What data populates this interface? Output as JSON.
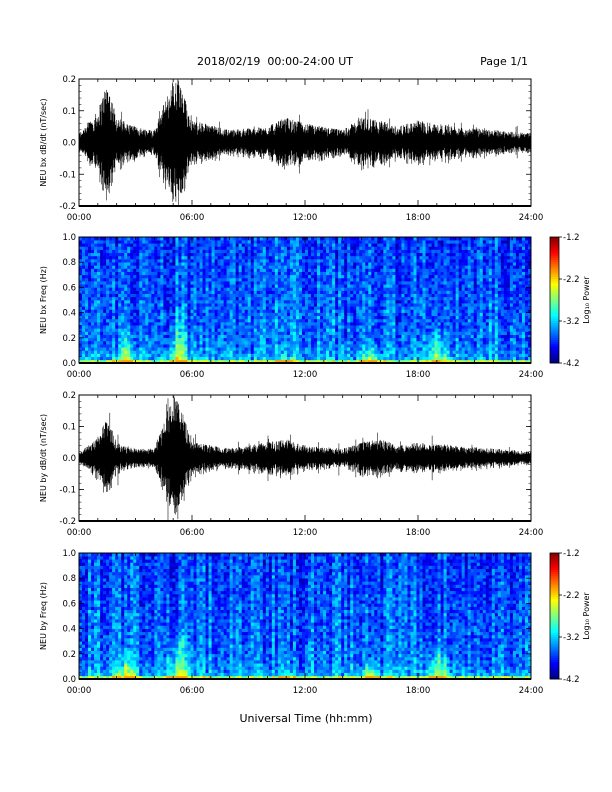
{
  "header": {
    "title": "2018/02/19  00:00-24:00 UT",
    "page": "Page 1/1"
  },
  "xaxis": {
    "label": "Universal Time (hh:mm)",
    "ticks": [
      "00:00",
      "06:00",
      "12:00",
      "18:00",
      "24:00"
    ],
    "range_hours": [
      0,
      24
    ]
  },
  "colorbar": {
    "label": "Log₁₀ Power",
    "ticks": [
      "-1.2",
      "-2.2",
      "-3.2",
      "-4.2"
    ],
    "range": [
      -4.2,
      -1.2
    ]
  },
  "chart_data": [
    {
      "type": "line",
      "ylabel": "NEU bx dB/dt (nT/sec)",
      "ylim": [
        -0.2,
        0.2
      ],
      "yticks": [
        "0.2",
        "0.1",
        "0.0",
        "-0.1",
        "-0.2"
      ],
      "x_hours": [
        0,
        1,
        1.5,
        2,
        3,
        4,
        5,
        5.3,
        6,
        8,
        10,
        11,
        12,
        14,
        15,
        16,
        17,
        18,
        20,
        22,
        24
      ],
      "envelope": [
        0.03,
        0.1,
        0.2,
        0.08,
        0.05,
        0.04,
        0.2,
        0.2,
        0.07,
        0.04,
        0.05,
        0.08,
        0.06,
        0.04,
        0.08,
        0.07,
        0.05,
        0.07,
        0.05,
        0.04,
        0.03
      ],
      "color": "#000000"
    },
    {
      "type": "heatmap",
      "ylabel": "NEU bx Freq (Hz)",
      "ylim": [
        0,
        1.0
      ],
      "yticks": [
        "1.0",
        "0.8",
        "0.6",
        "0.4",
        "0.2",
        "0.0"
      ],
      "enhancements": [
        {
          "t_hours": 2.5,
          "top_hz": 0.25
        },
        {
          "t_hours": 5.3,
          "top_hz": 0.38
        },
        {
          "t_hours": 11,
          "top_hz": 0.06
        },
        {
          "t_hours": 15.5,
          "top_hz": 0.15
        },
        {
          "t_hours": 19,
          "top_hz": 0.3
        }
      ]
    },
    {
      "type": "line",
      "ylabel": "NEU by dB/dt (nT/sec)",
      "ylim": [
        -0.2,
        0.2
      ],
      "yticks": [
        "0.2",
        "0.1",
        "0.0",
        "-0.1",
        "-0.2"
      ],
      "x_hours": [
        0,
        1,
        1.5,
        2,
        3,
        4,
        5,
        5.3,
        6,
        8,
        10,
        11,
        12,
        14,
        15,
        16,
        17,
        18,
        20,
        22,
        24
      ],
      "envelope": [
        0.015,
        0.07,
        0.13,
        0.05,
        0.03,
        0.03,
        0.2,
        0.18,
        0.05,
        0.03,
        0.05,
        0.06,
        0.04,
        0.03,
        0.05,
        0.06,
        0.04,
        0.05,
        0.04,
        0.03,
        0.02
      ],
      "color": "#000000"
    },
    {
      "type": "heatmap",
      "ylabel": "NEU by Freq (Hz)",
      "ylim": [
        0,
        1.0
      ],
      "yticks": [
        "1.0",
        "0.8",
        "0.6",
        "0.4",
        "0.2",
        "0.0"
      ],
      "enhancements": [
        {
          "t_hours": 2.5,
          "top_hz": 0.25
        },
        {
          "t_hours": 5.3,
          "top_hz": 0.38
        },
        {
          "t_hours": 11,
          "top_hz": 0.06
        },
        {
          "t_hours": 15.5,
          "top_hz": 0.15
        },
        {
          "t_hours": 19,
          "top_hz": 0.3
        }
      ]
    }
  ]
}
